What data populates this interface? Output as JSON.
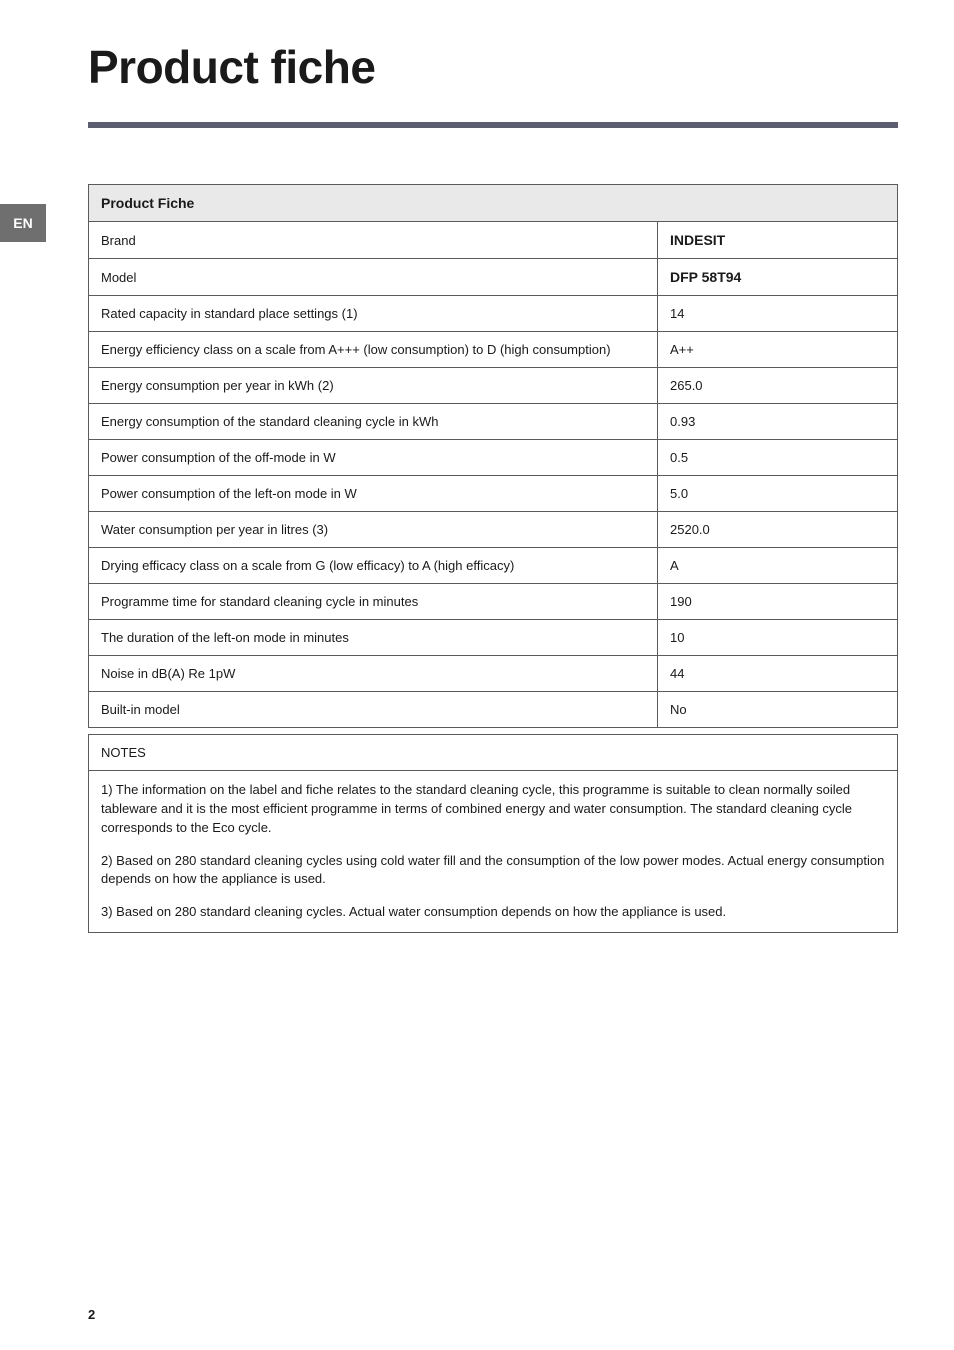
{
  "page": {
    "title": "Product fiche",
    "language_code": "EN",
    "page_number": "2",
    "colors": {
      "rule": "#5c5d6e",
      "tab_bg": "#6f6f6f",
      "tab_fg": "#ffffff",
      "table_border": "#5a5a5a",
      "header_bg": "#e9e9e9",
      "text": "#1a1a1a",
      "bg": "#ffffff"
    }
  },
  "fiche": {
    "header": "Product Fiche",
    "rows": [
      {
        "label": "Brand",
        "value": "INDESIT",
        "bold_value": true
      },
      {
        "label": "Model",
        "value": "DFP 58T94",
        "bold_value": true
      },
      {
        "label": "Rated capacity in standard place settings (1)",
        "value": "14",
        "bold_value": false
      },
      {
        "label": "Energy efficiency class on a scale from A+++ (low consumption) to D  (high consumption)",
        "value": "A++",
        "bold_value": false
      },
      {
        "label": "Energy consumption per year in kWh (2)",
        "value": "265.0",
        "bold_value": false
      },
      {
        "label": "Energy consumption of the standard cleaning cycle in kWh",
        "value": "0.93",
        "bold_value": false
      },
      {
        "label": "Power consumption of the off-mode in W",
        "value": "0.5",
        "bold_value": false
      },
      {
        "label": "Power consumption of the left-on mode in W",
        "value": "5.0",
        "bold_value": false
      },
      {
        "label": "Water consumption per year in litres (3)",
        "value": "2520.0",
        "bold_value": false
      },
      {
        "label": "Drying efficacy class on a scale from G (low efficacy) to A (high efficacy)",
        "value": "A",
        "bold_value": false
      },
      {
        "label": "Programme time for standard cleaning cycle in minutes",
        "value": "190",
        "bold_value": false
      },
      {
        "label": "The duration of the left-on mode in minutes",
        "value": "10",
        "bold_value": false
      },
      {
        "label": "Noise in dB(A) Re 1pW",
        "value": "44",
        "bold_value": false
      },
      {
        "label": "Built-in model",
        "value": "No",
        "bold_value": false
      }
    ]
  },
  "notes": {
    "header": "NOTES",
    "paragraphs": [
      "1) The information on the label and fiche relates to the standard cleaning cycle, this programme is suitable to clean normally soiled tableware and it is the most efficient programme in terms of combined energy and water consumption. The standard cleaning cycle corresponds to the Eco cycle.",
      "2) Based on 280 standard cleaning cycles using cold water fill and the consumption of the low power modes. Actual energy consumption depends on how the appliance is used.",
      "3) Based on 280 standard cleaning cycles. Actual water consumption  depends on how the appliance is used."
    ]
  }
}
